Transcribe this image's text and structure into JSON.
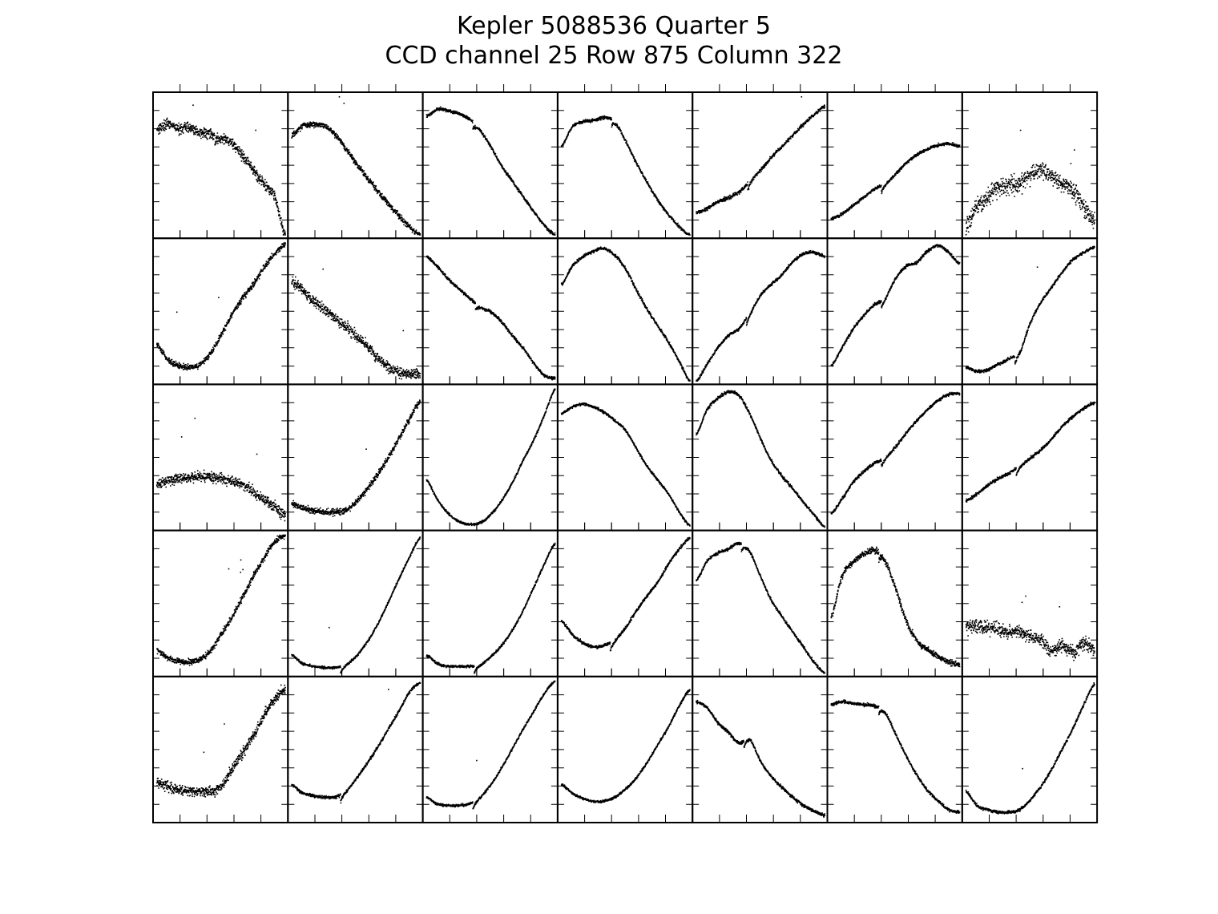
{
  "title": "Kepler 5088536 Quarter 5",
  "subtitle": "CCD channel 25 Row 875 Column 322",
  "chart_data": {
    "type": "scatter",
    "title": "Kepler 5088536 Quarter 5",
    "subtitle": "CCD channel 25 Row 875 Column 322",
    "layout": "grid",
    "rows": 5,
    "cols": 7,
    "axes": "shared per panel, no tick labels",
    "point_color": "#000000",
    "panels": [
      {
        "row": 0,
        "col": 0,
        "y": [
          0.77,
          0.8,
          0.77,
          0.78,
          0.74,
          0.73,
          0.7,
          0.67,
          0.57,
          0.47,
          0.37,
          0.28,
          0.0
        ],
        "noise": 0.035,
        "dip": 0.45,
        "outliers": 2
      },
      {
        "row": 0,
        "col": 1,
        "y": [
          0.72,
          0.79,
          0.8,
          0.79,
          0.73,
          0.63,
          0.52,
          0.42,
          0.32,
          0.23,
          0.14,
          0.06,
          0.0
        ],
        "noise": 0.02,
        "dip": -1,
        "outliers": 2
      },
      {
        "row": 0,
        "col": 2,
        "y": [
          0.86,
          0.91,
          0.9,
          0.88,
          0.84,
          0.76,
          0.64,
          0.5,
          0.39,
          0.28,
          0.17,
          0.07,
          0.0
        ],
        "noise": 0.01,
        "dip": 0.36,
        "outliers": 0
      },
      {
        "row": 0,
        "col": 3,
        "y": [
          0.64,
          0.78,
          0.82,
          0.83,
          0.85,
          0.82,
          0.68,
          0.52,
          0.38,
          0.25,
          0.15,
          0.06,
          0.0
        ],
        "noise": 0.01,
        "dip": 0.39,
        "outliers": 0
      },
      {
        "row": 0,
        "col": 4,
        "y": [
          0.16,
          0.19,
          0.24,
          0.27,
          0.31,
          0.39,
          0.47,
          0.56,
          0.64,
          0.72,
          0.8,
          0.87,
          0.93
        ],
        "noise": 0.012,
        "dip": 0.4,
        "outliers": 1
      },
      {
        "row": 0,
        "col": 5,
        "y": [
          0.12,
          0.15,
          0.21,
          0.27,
          0.33,
          0.37,
          0.44,
          0.52,
          0.58,
          0.62,
          0.65,
          0.66,
          0.64
        ],
        "noise": 0.01,
        "dip": 0.39,
        "outliers": 0
      },
      {
        "row": 0,
        "col": 6,
        "y": [
          0.05,
          0.2,
          0.27,
          0.34,
          0.36,
          0.37,
          0.43,
          0.47,
          0.42,
          0.37,
          0.32,
          0.2,
          0.09
        ],
        "noise": 0.06,
        "dip": -1,
        "outliers": 3
      },
      {
        "row": 1,
        "col": 0,
        "y": [
          0.26,
          0.16,
          0.11,
          0.1,
          0.12,
          0.2,
          0.33,
          0.48,
          0.6,
          0.7,
          0.82,
          0.92,
          0.99
        ],
        "noise": 0.02,
        "dip": -1,
        "outliers": 2
      },
      {
        "row": 1,
        "col": 1,
        "y": [
          0.72,
          0.66,
          0.58,
          0.52,
          0.46,
          0.4,
          0.33,
          0.25,
          0.17,
          0.1,
          0.07,
          0.05,
          0.05
        ],
        "noise": 0.035,
        "dip": -1,
        "outliers": 2
      },
      {
        "row": 1,
        "col": 2,
        "y": [
          0.9,
          0.83,
          0.74,
          0.67,
          0.6,
          0.54,
          0.5,
          0.43,
          0.33,
          0.24,
          0.13,
          0.04,
          0.02
        ],
        "noise": 0.01,
        "dip": 0.38,
        "outliers": 0
      },
      {
        "row": 1,
        "col": 3,
        "y": [
          0.7,
          0.83,
          0.9,
          0.94,
          0.96,
          0.91,
          0.81,
          0.66,
          0.52,
          0.4,
          0.28,
          0.14,
          0.0
        ],
        "noise": 0.01,
        "dip": -1,
        "outliers": 0
      },
      {
        "row": 1,
        "col": 4,
        "y": [
          0.0,
          0.12,
          0.24,
          0.33,
          0.38,
          0.49,
          0.62,
          0.7,
          0.77,
          0.86,
          0.92,
          0.93,
          0.9
        ],
        "noise": 0.01,
        "dip": 0.39,
        "outliers": 0
      },
      {
        "row": 1,
        "col": 5,
        "y": [
          0.11,
          0.24,
          0.37,
          0.47,
          0.55,
          0.6,
          0.74,
          0.83,
          0.86,
          0.94,
          0.98,
          0.93,
          0.85
        ],
        "noise": 0.01,
        "dip": 0.39,
        "outliers": 0
      },
      {
        "row": 1,
        "col": 6,
        "y": [
          0.1,
          0.07,
          0.08,
          0.12,
          0.16,
          0.21,
          0.42,
          0.57,
          0.68,
          0.79,
          0.88,
          0.93,
          0.97
        ],
        "noise": 0.01,
        "dip": 0.38,
        "outliers": 1
      },
      {
        "row": 2,
        "col": 0,
        "y": [
          0.31,
          0.33,
          0.35,
          0.36,
          0.36,
          0.36,
          0.35,
          0.33,
          0.31,
          0.25,
          0.2,
          0.15,
          0.08
        ],
        "noise": 0.035,
        "dip": -1,
        "outliers": 3
      },
      {
        "row": 2,
        "col": 1,
        "y": [
          0.17,
          0.14,
          0.12,
          0.11,
          0.11,
          0.12,
          0.18,
          0.27,
          0.38,
          0.5,
          0.64,
          0.78,
          0.91
        ],
        "noise": 0.02,
        "dip": -1,
        "outliers": 1
      },
      {
        "row": 2,
        "col": 2,
        "y": [
          0.34,
          0.2,
          0.1,
          0.04,
          0.02,
          0.03,
          0.09,
          0.19,
          0.32,
          0.48,
          0.63,
          0.81,
          1.0
        ],
        "noise": 0.008,
        "dip": -1,
        "outliers": 0
      },
      {
        "row": 2,
        "col": 3,
        "y": [
          0.82,
          0.87,
          0.89,
          0.87,
          0.83,
          0.77,
          0.7,
          0.57,
          0.44,
          0.34,
          0.24,
          0.11,
          0.01
        ],
        "noise": 0.008,
        "dip": -1,
        "outliers": 0
      },
      {
        "row": 2,
        "col": 4,
        "y": [
          0.67,
          0.85,
          0.93,
          0.98,
          0.95,
          0.82,
          0.64,
          0.48,
          0.37,
          0.28,
          0.18,
          0.09,
          0.0
        ],
        "noise": 0.01,
        "dip": -1,
        "outliers": 0
      },
      {
        "row": 2,
        "col": 5,
        "y": [
          0.1,
          0.2,
          0.32,
          0.4,
          0.46,
          0.5,
          0.58,
          0.68,
          0.77,
          0.85,
          0.92,
          0.96,
          0.97
        ],
        "noise": 0.01,
        "dip": 0.39,
        "outliers": 0
      },
      {
        "row": 2,
        "col": 6,
        "y": [
          0.19,
          0.24,
          0.3,
          0.35,
          0.39,
          0.44,
          0.5,
          0.56,
          0.64,
          0.73,
          0.8,
          0.86,
          0.9
        ],
        "noise": 0.01,
        "dip": 0.39,
        "outliers": 0
      },
      {
        "row": 3,
        "col": 0,
        "y": [
          0.17,
          0.11,
          0.09,
          0.08,
          0.1,
          0.16,
          0.28,
          0.4,
          0.55,
          0.7,
          0.83,
          0.95,
          1.0
        ],
        "noise": 0.02,
        "dip": -1,
        "outliers": 4
      },
      {
        "row": 3,
        "col": 1,
        "y": [
          0.13,
          0.07,
          0.05,
          0.04,
          0.04,
          0.06,
          0.12,
          0.22,
          0.35,
          0.51,
          0.68,
          0.84,
          0.98
        ],
        "noise": 0.008,
        "dip": 0.38,
        "outliers": 1
      },
      {
        "row": 3,
        "col": 2,
        "y": [
          0.13,
          0.07,
          0.05,
          0.05,
          0.05,
          0.06,
          0.12,
          0.2,
          0.31,
          0.45,
          0.62,
          0.79,
          0.94
        ],
        "noise": 0.008,
        "dip": 0.37,
        "outliers": 0
      },
      {
        "row": 3,
        "col": 3,
        "y": [
          0.38,
          0.28,
          0.22,
          0.19,
          0.2,
          0.24,
          0.33,
          0.45,
          0.56,
          0.66,
          0.79,
          0.9,
          0.98
        ],
        "noise": 0.01,
        "dip": 0.38,
        "outliers": 0
      },
      {
        "row": 3,
        "col": 4,
        "y": [
          0.67,
          0.81,
          0.87,
          0.9,
          0.94,
          0.88,
          0.7,
          0.53,
          0.41,
          0.3,
          0.19,
          0.08,
          0.0
        ],
        "noise": 0.01,
        "dip": 0.35,
        "outliers": 0
      },
      {
        "row": 3,
        "col": 5,
        "y": [
          0.4,
          0.7,
          0.8,
          0.86,
          0.89,
          0.82,
          0.62,
          0.38,
          0.24,
          0.17,
          0.12,
          0.08,
          0.06
        ],
        "noise": 0.02,
        "dip": 0.37,
        "outliers": 0
      },
      {
        "row": 3,
        "col": 6,
        "y": [
          0.33,
          0.34,
          0.33,
          0.32,
          0.3,
          0.3,
          0.27,
          0.24,
          0.16,
          0.2,
          0.15,
          0.22,
          0.17
        ],
        "noise": 0.045,
        "dip": -1,
        "outliers": 3
      },
      {
        "row": 4,
        "col": 0,
        "y": [
          0.27,
          0.24,
          0.21,
          0.2,
          0.2,
          0.2,
          0.24,
          0.36,
          0.48,
          0.6,
          0.75,
          0.87,
          0.95
        ],
        "noise": 0.035,
        "dip": -1,
        "outliers": 2
      },
      {
        "row": 4,
        "col": 1,
        "y": [
          0.25,
          0.19,
          0.17,
          0.16,
          0.16,
          0.2,
          0.29,
          0.4,
          0.52,
          0.65,
          0.78,
          0.92,
          0.99
        ],
        "noise": 0.01,
        "dip": 0.38,
        "outliers": 1
      },
      {
        "row": 4,
        "col": 2,
        "y": [
          0.16,
          0.11,
          0.1,
          0.1,
          0.11,
          0.16,
          0.25,
          0.37,
          0.51,
          0.65,
          0.78,
          0.91,
          1.0
        ],
        "noise": 0.008,
        "dip": 0.36,
        "outliers": 1
      },
      {
        "row": 4,
        "col": 3,
        "y": [
          0.25,
          0.19,
          0.15,
          0.13,
          0.13,
          0.16,
          0.22,
          0.3,
          0.41,
          0.54,
          0.67,
          0.82,
          0.94
        ],
        "noise": 0.008,
        "dip": -1,
        "outliers": 0
      },
      {
        "row": 4,
        "col": 4,
        "y": [
          0.85,
          0.81,
          0.7,
          0.63,
          0.55,
          0.58,
          0.42,
          0.31,
          0.23,
          0.16,
          0.1,
          0.06,
          0.03
        ],
        "noise": 0.01,
        "dip": 0.37,
        "outliers": 0
      },
      {
        "row": 4,
        "col": 5,
        "y": [
          0.83,
          0.85,
          0.84,
          0.83,
          0.82,
          0.78,
          0.62,
          0.46,
          0.32,
          0.21,
          0.13,
          0.07,
          0.05
        ],
        "noise": 0.01,
        "dip": 0.37,
        "outliers": 0
      },
      {
        "row": 4,
        "col": 6,
        "y": [
          0.2,
          0.1,
          0.07,
          0.05,
          0.05,
          0.07,
          0.14,
          0.24,
          0.36,
          0.51,
          0.66,
          0.83,
          0.98
        ],
        "noise": 0.01,
        "dip": -1,
        "outliers": 1
      }
    ]
  }
}
